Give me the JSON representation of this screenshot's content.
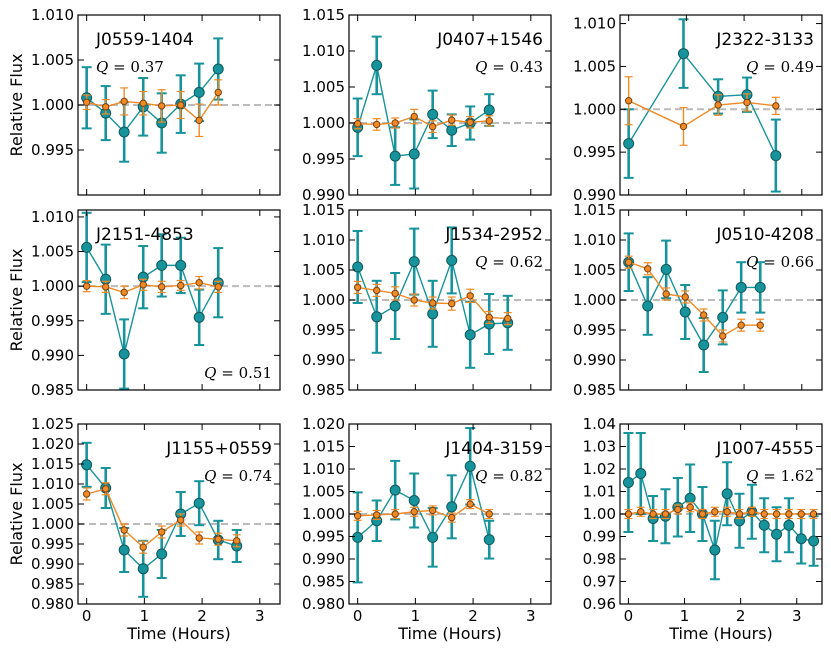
{
  "figure": {
    "ylabel": "Relative Flux",
    "xlabel": "Time (Hours)",
    "colors": {
      "teal": "#17939b",
      "teal_edge": "#0f5a5e",
      "orange": "#f08a24",
      "orange_edge": "#7a4010",
      "dash": "#bbbbbb"
    }
  },
  "chart_data": [
    {
      "type": "scatter",
      "title": "J0559-1404",
      "q_value": "0.37",
      "name_pos": "left",
      "q_pos": "upper-left",
      "xlim": [
        -0.15,
        3.35
      ],
      "ylim": [
        0.99,
        1.01
      ],
      "yticks": [
        0.995,
        1.0,
        1.005,
        1.01
      ],
      "ytick_labels": [
        "0.995",
        "1.000",
        "1.005",
        "1.010"
      ],
      "xticks": [
        0,
        1,
        2,
        3
      ],
      "xtick_labels": [],
      "show_xlabel": false,
      "show_ylabel": true,
      "series": [
        {
          "name": "teal",
          "x": [
            0,
            0.33,
            0.65,
            0.98,
            1.3,
            1.63,
            1.95,
            2.28
          ],
          "y": [
            1.0008,
            0.9991,
            0.997,
            0.9998,
            0.998,
            1.0001,
            1.0014,
            1.004
          ],
          "err": [
            0.0034,
            0.003,
            0.0033,
            0.0032,
            0.0033,
            0.0032,
            0.0032,
            0.0034
          ]
        },
        {
          "name": "orange",
          "x": [
            0,
            0.33,
            0.65,
            0.98,
            1.3,
            1.63,
            1.95,
            2.28
          ],
          "y": [
            1.0003,
            0.9998,
            1.0004,
            1.0002,
            0.9999,
            1.0,
            0.9983,
            1.0014
          ],
          "err": [
            0.0008,
            0.0008,
            0.0015,
            0.0013,
            0.0018,
            0.0015,
            0.0018,
            0.0014
          ]
        }
      ]
    },
    {
      "type": "scatter",
      "title": "J0407+1546",
      "q_value": "0.43",
      "name_pos": "right",
      "q_pos": "upper-right",
      "xlim": [
        -0.15,
        3.35
      ],
      "ylim": [
        0.99,
        1.015
      ],
      "yticks": [
        0.99,
        0.995,
        1.0,
        1.005,
        1.01,
        1.015
      ],
      "ytick_labels": [
        "0.990",
        "0.995",
        "1.000",
        "1.005",
        "1.010",
        "1.015"
      ],
      "xticks": [
        0,
        1,
        2,
        3
      ],
      "xtick_labels": [],
      "show_xlabel": false,
      "show_ylabel": false,
      "series": [
        {
          "name": "teal",
          "x": [
            0,
            0.33,
            0.65,
            0.98,
            1.3,
            1.63,
            1.95,
            2.28
          ],
          "y": [
            0.9994,
            1.008,
            0.9954,
            0.9957,
            1.0012,
            0.999,
            1.0,
            1.0018
          ],
          "err": [
            0.004,
            0.004,
            0.004,
            0.0048,
            0.0033,
            0.0022,
            0.0023,
            0.0022
          ]
        },
        {
          "name": "orange",
          "x": [
            0,
            0.33,
            0.65,
            0.98,
            1.3,
            1.63,
            1.95,
            2.28
          ],
          "y": [
            0.9999,
            0.9998,
            1.0,
            1.0009,
            0.9995,
            1.0004,
            1.0001,
            1.0003
          ],
          "err": [
            0.0007,
            0.0008,
            0.0007,
            0.001,
            0.0008,
            0.0007,
            0.0008,
            0.0007
          ]
        }
      ]
    },
    {
      "type": "scatter",
      "title": "J2322-3133",
      "q_value": "0.49",
      "name_pos": "right",
      "q_pos": "upper-right",
      "xlim": [
        -0.15,
        3.35
      ],
      "ylim": [
        0.99,
        1.011
      ],
      "yticks": [
        0.99,
        0.995,
        1.0,
        1.005,
        1.01
      ],
      "ytick_labels": [
        "0.990",
        "0.995",
        "1.000",
        "1.005",
        "1.010"
      ],
      "xticks": [
        0,
        1,
        2,
        3
      ],
      "xtick_labels": [],
      "show_xlabel": false,
      "show_ylabel": false,
      "series": [
        {
          "name": "teal",
          "x": [
            0,
            0.95,
            1.55,
            2.05,
            2.55
          ],
          "y": [
            0.996,
            1.0065,
            1.0015,
            1.0017,
            0.9946
          ],
          "err": [
            0.004,
            0.004,
            0.002,
            0.002,
            0.0042
          ]
        },
        {
          "name": "orange",
          "x": [
            0,
            0.95,
            1.55,
            2.05,
            2.55
          ],
          "y": [
            1.001,
            0.998,
            1.0005,
            1.0008,
            1.0004
          ],
          "err": [
            0.0028,
            0.0022,
            0.0012,
            0.001,
            0.001
          ]
        }
      ]
    },
    {
      "type": "scatter",
      "title": "J2151-4853",
      "q_value": "0.51",
      "name_pos": "left",
      "q_pos": "lower-right",
      "xlim": [
        -0.15,
        3.35
      ],
      "ylim": [
        0.985,
        1.011
      ],
      "yticks": [
        0.985,
        0.99,
        0.995,
        1.0,
        1.005,
        1.01
      ],
      "ytick_labels": [
        "0.985",
        "0.990",
        "0.995",
        "1.000",
        "1.005",
        "1.010"
      ],
      "xticks": [
        0,
        1,
        2,
        3
      ],
      "xtick_labels": [],
      "show_xlabel": false,
      "show_ylabel": true,
      "series": [
        {
          "name": "teal",
          "x": [
            0,
            0.33,
            0.65,
            0.98,
            1.3,
            1.63,
            1.95,
            2.28
          ],
          "y": [
            1.0056,
            1.001,
            0.9902,
            1.0013,
            1.003,
            1.003,
            0.9955,
            1.0005
          ],
          "err": [
            0.005,
            0.005,
            0.005,
            0.0045,
            0.0045,
            0.004,
            0.004,
            0.005
          ]
        },
        {
          "name": "orange",
          "x": [
            0,
            0.33,
            0.65,
            0.98,
            1.3,
            1.63,
            1.95,
            2.28
          ],
          "y": [
            1.0,
            0.9999,
            0.9991,
            1.0002,
            0.9999,
            1.0001,
            1.0005,
            0.9999
          ],
          "err": [
            0.0008,
            0.0008,
            0.0009,
            0.0008,
            0.0008,
            0.0007,
            0.0009,
            0.0008
          ]
        }
      ]
    },
    {
      "type": "scatter",
      "title": "J1534-2952",
      "q_value": "0.62",
      "name_pos": "right",
      "q_pos": "upper-right",
      "xlim": [
        -0.15,
        3.35
      ],
      "ylim": [
        0.985,
        1.015
      ],
      "yticks": [
        0.985,
        0.99,
        0.995,
        1.0,
        1.005,
        1.01,
        1.015
      ],
      "ytick_labels": [
        "0.985",
        "0.990",
        "0.995",
        "1.000",
        "1.005",
        "1.010",
        "1.015"
      ],
      "xticks": [
        0,
        1,
        2,
        3
      ],
      "xtick_labels": [],
      "show_xlabel": false,
      "show_ylabel": false,
      "series": [
        {
          "name": "teal",
          "x": [
            0,
            0.33,
            0.65,
            0.98,
            1.3,
            1.63,
            1.95,
            2.28,
            2.6
          ],
          "y": [
            1.0055,
            0.9972,
            0.999,
            1.0064,
            0.9977,
            1.0066,
            0.9942,
            0.996,
            0.9962
          ],
          "err": [
            0.006,
            0.006,
            0.0055,
            0.0055,
            0.0055,
            0.0055,
            0.0055,
            0.005,
            0.0045
          ]
        },
        {
          "name": "orange",
          "x": [
            0,
            0.33,
            0.65,
            0.98,
            1.3,
            1.63,
            1.95,
            2.28,
            2.6
          ],
          "y": [
            1.0021,
            1.0016,
            1.0011,
            1.0,
            0.9995,
            0.9994,
            1.0007,
            0.9971,
            0.9969
          ],
          "err": [
            0.001,
            0.001,
            0.0011,
            0.001,
            0.001,
            0.0011,
            0.0011,
            0.001,
            0.001
          ]
        }
      ]
    },
    {
      "type": "scatter",
      "title": "J0510-4208",
      "q_value": "0.66",
      "name_pos": "right",
      "q_pos": "upper-right",
      "xlim": [
        -0.15,
        3.35
      ],
      "ylim": [
        0.985,
        1.015
      ],
      "yticks": [
        0.985,
        0.99,
        0.995,
        1.0,
        1.005,
        1.01,
        1.015
      ],
      "ytick_labels": [
        "0.985",
        "0.990",
        "0.995",
        "1.000",
        "1.005",
        "1.010",
        "1.015"
      ],
      "xticks": [
        0,
        1,
        2,
        3
      ],
      "xtick_labels": [],
      "show_xlabel": false,
      "show_ylabel": false,
      "series": [
        {
          "name": "teal",
          "x": [
            0,
            0.33,
            0.65,
            0.98,
            1.3,
            1.63,
            1.95,
            2.28
          ],
          "y": [
            1.0063,
            0.999,
            1.0051,
            0.998,
            0.9925,
            0.9971,
            1.0021,
            1.0021
          ],
          "err": [
            0.0048,
            0.0048,
            0.0048,
            0.0045,
            0.0045,
            0.0045,
            0.0042,
            0.0042
          ]
        },
        {
          "name": "orange",
          "x": [
            0,
            0.33,
            0.65,
            0.98,
            1.3,
            1.63,
            1.95,
            2.28
          ],
          "y": [
            1.0063,
            1.0052,
            1.001,
            1.0005,
            0.9975,
            0.994,
            0.9958,
            0.9958
          ],
          "err": [
            0.001,
            0.001,
            0.001,
            0.001,
            0.001,
            0.001,
            0.001,
            0.001
          ]
        }
      ]
    },
    {
      "type": "scatter",
      "title": "J1155+0559",
      "q_value": "0.74",
      "name_pos": "right",
      "q_pos": "upper-right",
      "xlim": [
        -0.15,
        3.35
      ],
      "ylim": [
        0.98,
        1.025
      ],
      "yticks": [
        0.98,
        0.985,
        0.99,
        0.995,
        1.0,
        1.005,
        1.01,
        1.015,
        1.02,
        1.025
      ],
      "ytick_labels": [
        "0.980",
        "0.985",
        "0.990",
        "0.995",
        "1.000",
        "1.005",
        "1.010",
        "1.015",
        "1.020",
        "1.025"
      ],
      "xticks": [
        0,
        1,
        2,
        3
      ],
      "xtick_labels": [
        "0",
        "1",
        "2",
        "3"
      ],
      "show_xlabel": true,
      "show_ylabel": true,
      "series": [
        {
          "name": "teal",
          "x": [
            0,
            0.33,
            0.65,
            0.98,
            1.3,
            1.63,
            1.95,
            2.28,
            2.6
          ],
          "y": [
            1.0148,
            1.009,
            0.9935,
            0.9888,
            0.9925,
            1.0025,
            1.0052,
            0.996,
            0.9945
          ],
          "err": [
            0.0055,
            0.005,
            0.0055,
            0.007,
            0.006,
            0.0055,
            0.0055,
            0.0048,
            0.004
          ]
        },
        {
          "name": "orange",
          "x": [
            0,
            0.33,
            0.65,
            0.98,
            1.3,
            1.63,
            1.95,
            2.28,
            2.6
          ],
          "y": [
            1.0075,
            1.0088,
            0.9985,
            0.9942,
            0.998,
            1.001,
            0.9965,
            0.9962,
            0.9958
          ],
          "err": [
            0.0015,
            0.0015,
            0.0015,
            0.0015,
            0.0015,
            0.0015,
            0.0015,
            0.0015,
            0.0015
          ]
        }
      ]
    },
    {
      "type": "scatter",
      "title": "J1404-3159",
      "q_value": "0.82",
      "name_pos": "right",
      "q_pos": "upper-right",
      "xlim": [
        -0.15,
        3.35
      ],
      "ylim": [
        0.98,
        1.02
      ],
      "yticks": [
        0.98,
        0.985,
        0.99,
        0.995,
        1.0,
        1.005,
        1.01,
        1.015,
        1.02
      ],
      "ytick_labels": [
        "0.980",
        "0.985",
        "0.990",
        "0.995",
        "1.000",
        "1.005",
        "1.010",
        "1.015",
        "1.020"
      ],
      "xticks": [
        0,
        1,
        2,
        3
      ],
      "xtick_labels": [
        "0",
        "1",
        "2",
        "3"
      ],
      "show_xlabel": true,
      "show_ylabel": false,
      "series": [
        {
          "name": "teal",
          "x": [
            0,
            0.33,
            0.65,
            0.98,
            1.3,
            1.63,
            1.95,
            2.28
          ],
          "y": [
            0.9948,
            0.9985,
            1.0053,
            1.003,
            0.9948,
            1.0016,
            1.0106,
            0.9943
          ],
          "err": [
            0.01,
            0.0045,
            0.0065,
            0.006,
            0.0065,
            0.007,
            0.0085,
            0.0042
          ]
        },
        {
          "name": "orange",
          "x": [
            0,
            0.33,
            0.65,
            0.98,
            1.3,
            1.63,
            1.95,
            2.28
          ],
          "y": [
            0.9996,
            0.9998,
            1.0,
            1.0005,
            1.0008,
            0.9992,
            1.0022,
            1.0
          ],
          "err": [
            0.001,
            0.001,
            0.001,
            0.001,
            0.001,
            0.001,
            0.001,
            0.001
          ]
        }
      ]
    },
    {
      "type": "scatter",
      "title": "J1007-4555",
      "q_value": "1.62",
      "name_pos": "right",
      "q_pos": "upper-right",
      "xlim": [
        -0.15,
        3.45
      ],
      "ylim": [
        0.96,
        1.04
      ],
      "yticks": [
        0.96,
        0.97,
        0.98,
        0.99,
        1.0,
        1.01,
        1.02,
        1.03,
        1.04
      ],
      "ytick_labels": [
        "0.96",
        "0.97",
        "0.98",
        "0.99",
        "1.00",
        "1.01",
        "1.02",
        "1.03",
        "1.04"
      ],
      "xticks": [
        0,
        1,
        2,
        3
      ],
      "xtick_labels": [
        "0",
        "1",
        "2",
        "3"
      ],
      "show_xlabel": true,
      "show_ylabel": false,
      "series": [
        {
          "name": "teal",
          "x": [
            0,
            0.22,
            0.44,
            0.66,
            0.88,
            1.1,
            1.32,
            1.54,
            1.76,
            1.98,
            2.2,
            2.42,
            2.64,
            2.86,
            3.08,
            3.3
          ],
          "y": [
            1.014,
            1.018,
            0.998,
            0.999,
            1.003,
            1.007,
            1.0,
            0.984,
            1.009,
            0.997,
            1.001,
            0.995,
            0.991,
            0.995,
            0.989,
            0.988
          ],
          "err": [
            0.022,
            0.018,
            0.01,
            0.012,
            0.013,
            0.015,
            0.012,
            0.013,
            0.014,
            0.012,
            0.012,
            0.012,
            0.012,
            0.012,
            0.011,
            0.011
          ]
        },
        {
          "name": "orange",
          "x": [
            0,
            0.22,
            0.44,
            0.66,
            0.88,
            1.1,
            1.32,
            1.54,
            1.76,
            1.98,
            2.2,
            2.42,
            2.64,
            2.86,
            3.08,
            3.3
          ],
          "y": [
            1.0,
            1.001,
            1.0,
            1.0,
            1.002,
            1.003,
            1.0,
            1.001,
            1.001,
            1.0,
            1.001,
            1.0,
            1.0,
            1.0,
            1.0,
            1.0
          ],
          "err": [
            0.002,
            0.002,
            0.002,
            0.002,
            0.002,
            0.002,
            0.002,
            0.002,
            0.002,
            0.002,
            0.002,
            0.002,
            0.002,
            0.002,
            0.002,
            0.002
          ]
        }
      ]
    }
  ]
}
